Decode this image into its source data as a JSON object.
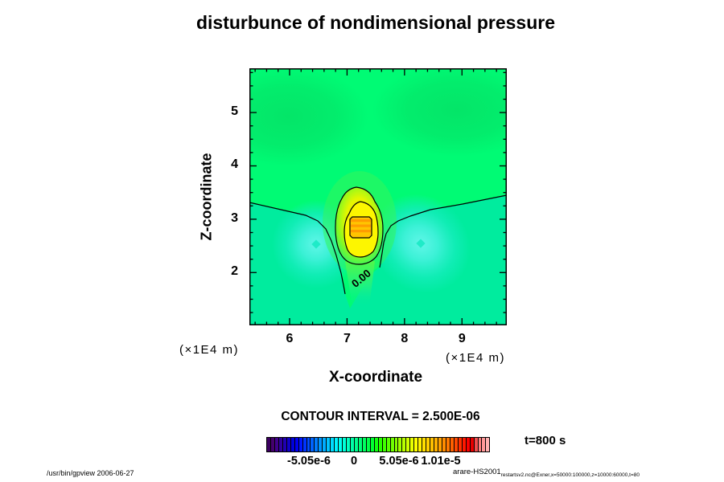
{
  "footer": {
    "left": "/usr/bin/gpview 2006-06-27",
    "right_main": "arare-HS2001",
    "right_sub": "restartsv2.nc@Exner,x=50000:100000,z=10000:60000,t=80"
  },
  "chart_data": {
    "type": "heatmap",
    "title": "disturbunce of nondimensional pressure",
    "xlabel": "X-coordinate",
    "ylabel": "Z-coordinate",
    "x_unit_label": "(×1E4 m)",
    "y_unit_label": "(×1E4 m)",
    "x_ticks": [
      6,
      7,
      8,
      9
    ],
    "y_ticks": [
      5,
      4,
      3,
      2
    ],
    "x_range": [
      5.3,
      9.78
    ],
    "y_range": [
      1.01,
      5.83
    ],
    "x_minor_step": 0.2,
    "y_minor_step": 0.25,
    "grid": false,
    "contour_interval_text": "CONTOUR INTERVAL = 2.500E-06",
    "contour_line_label": "0.00",
    "time_label": "t=800 s",
    "field_description": {
      "summary": "Pressure disturbance field: strong positive peak (~1.0e-5, orange/yellow) centered near x=7.2e4 m, z=2.85e4 m; two weak negative cyan lobes near (6.1e4, 2.55e4) and (8.4e4, 2.55e4) m; the 0.00 contour crosses the panel near z=3.2e4 m, dipping to z=1.8e4 m around the central column.",
      "peak": {
        "x_1e4m": 7.2,
        "z_1e4m": 2.85,
        "value": "~1.0e-5"
      },
      "negative_lobes": [
        {
          "x_1e4m": 6.1,
          "z_1e4m": 2.55,
          "value": "~-2e-6"
        },
        {
          "x_1e4m": 8.4,
          "z_1e4m": 2.55,
          "value": "~-2e-6"
        }
      ],
      "contour_levels_drawn": [
        "0.00",
        "2.5e-6",
        "5.0e-6",
        "7.5e-6"
      ]
    },
    "colorbar": {
      "labels": [
        "-5.05e-6",
        "0",
        "5.05e-6",
        "1.01e-5"
      ],
      "cell_colors": [
        "#3C0060",
        "#44006E",
        "#40008C",
        "#3000A0",
        "#2000B4",
        "#1000C8",
        "#0000DC",
        "#0000F0",
        "#0018FF",
        "#0034FF",
        "#004CFF",
        "#0064FF",
        "#007CFF",
        "#0094FF",
        "#00ACFF",
        "#00C4FF",
        "#00DCFF",
        "#00F4FF",
        "#00FFF0",
        "#00FFD8",
        "#00FFC0",
        "#00FFA8",
        "#00FF90",
        "#00FF78",
        "#00FF60",
        "#00FF48",
        "#00FF30",
        "#10FF10",
        "#28FF00",
        "#40FF00",
        "#58FF00",
        "#70FF00",
        "#88FF00",
        "#A0FF00",
        "#B8FF00",
        "#D0FF00",
        "#E8FF00",
        "#FFFF00",
        "#FFF000",
        "#FFE000",
        "#FFD000",
        "#FFC000",
        "#FFB000",
        "#FFA000",
        "#FF8C00",
        "#FF7800",
        "#FF6000",
        "#FF4800",
        "#FF3000",
        "#FF1800",
        "#FA0000",
        "#E80000",
        "#F05050",
        "#FF8080",
        "#FF9898",
        "#FFB0B0"
      ]
    },
    "palette": {
      "field_bright_green": "#00FB74",
      "field_dark_green_patch": "#05E166",
      "field_teal_negative": "#00EC9E",
      "cyan_lobe": "#5CF5E2",
      "peak_yellow": "#FDF600",
      "peak_orange": "#FFC400",
      "peak_orange_stripe": "#FF9C00",
      "contour_line": "#000000",
      "background": "#FFFFFF"
    }
  }
}
